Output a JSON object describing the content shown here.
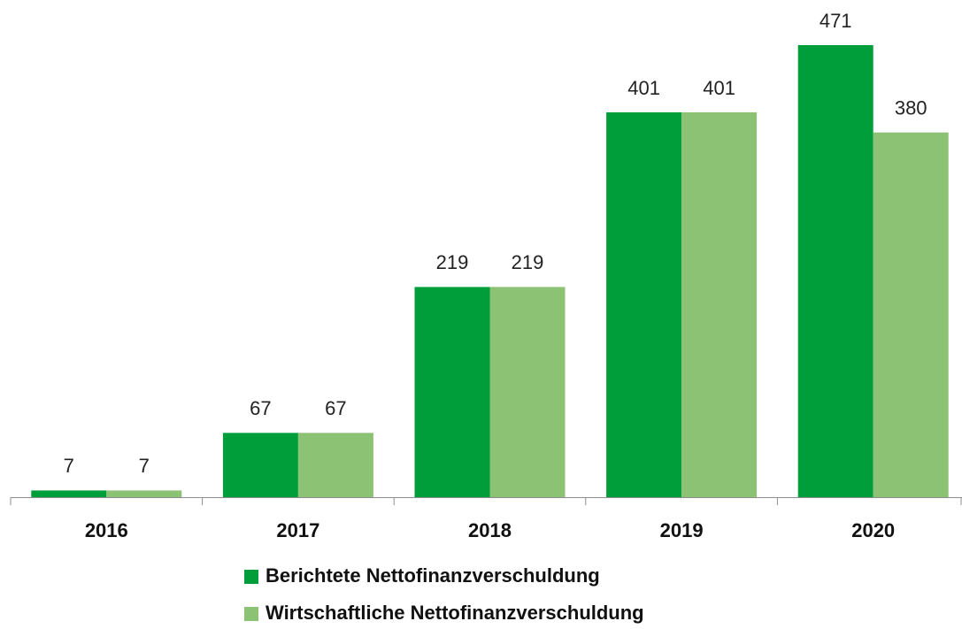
{
  "chart_data": {
    "type": "bar",
    "categories": [
      "2016",
      "2017",
      "2018",
      "2019",
      "2020"
    ],
    "series": [
      {
        "name": "Berichtete Nettofinanzverschuldung",
        "color": "#009e3a",
        "values": [
          7,
          67,
          219,
          401,
          471
        ]
      },
      {
        "name": "Wirtschaftliche Nettofinanzverschuldung",
        "color": "#8cc274",
        "values": [
          7,
          67,
          219,
          401,
          380
        ]
      }
    ]
  }
}
